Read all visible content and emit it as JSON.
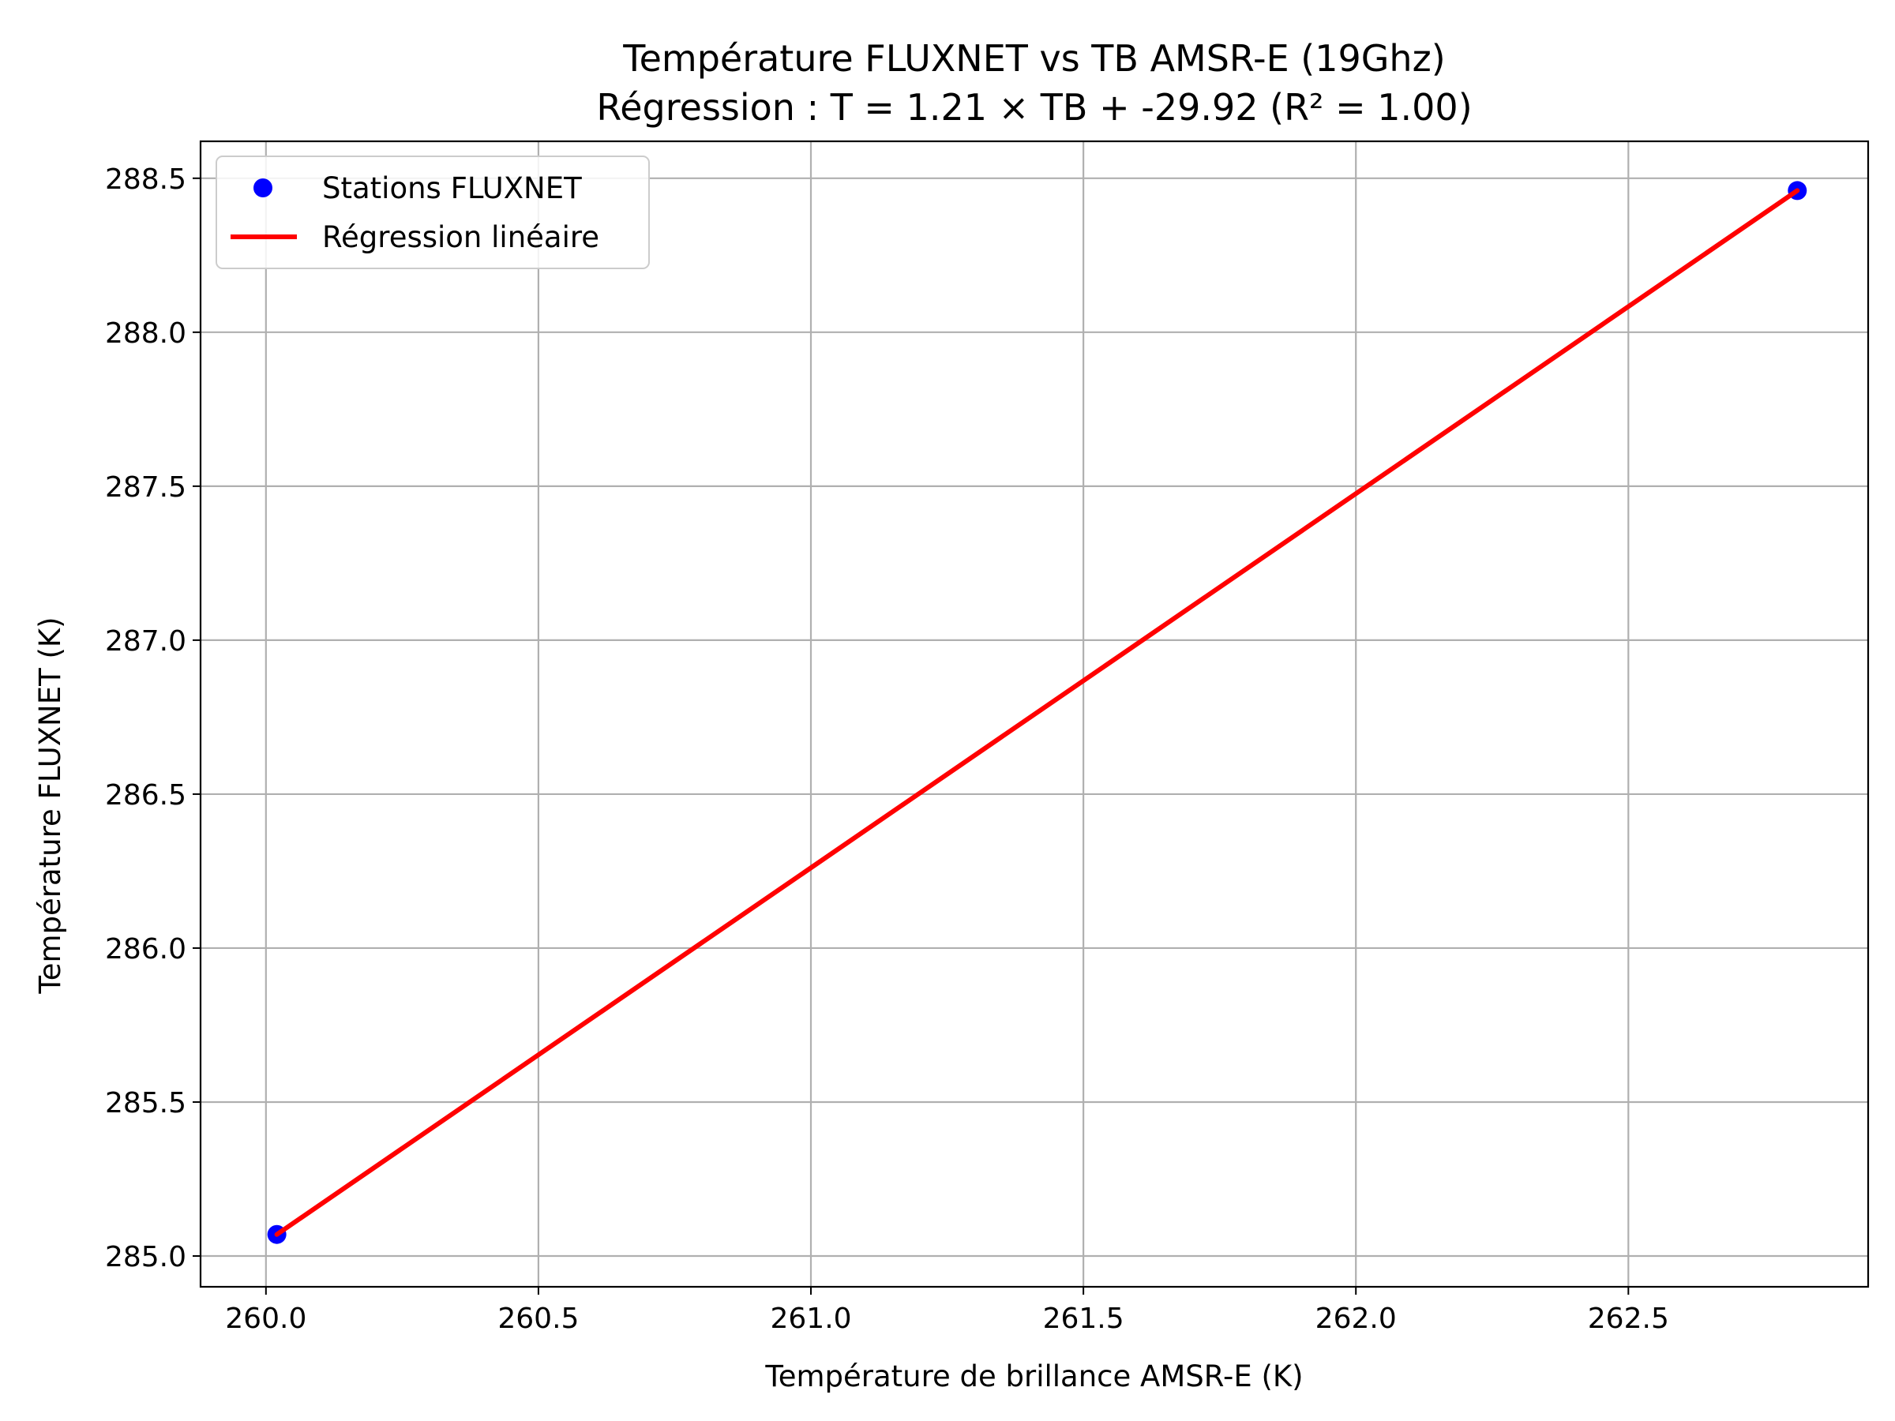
{
  "chart_data": {
    "type": "scatter",
    "title": "Température FLUXNET vs TB AMSR-E (19Ghz)",
    "subtitle": "Régression : T = 1.21 × TB + -29.92 (R² = 1.00)",
    "xlabel": "Température de brillance AMSR-E (K)",
    "ylabel": "Température FLUXNET (K)",
    "xlim": [
      259.88,
      262.94
    ],
    "ylim": [
      284.9,
      288.62
    ],
    "xticks": [
      260.0,
      260.5,
      261.0,
      261.5,
      262.0,
      262.5
    ],
    "xtick_labels": [
      "260.0",
      "260.5",
      "261.0",
      "261.5",
      "262.0",
      "262.5"
    ],
    "yticks": [
      285.0,
      285.5,
      286.0,
      286.5,
      287.0,
      287.5,
      288.0,
      288.5
    ],
    "ytick_labels": [
      "285.0",
      "285.5",
      "286.0",
      "286.5",
      "287.0",
      "287.5",
      "288.0",
      "288.5"
    ],
    "grid": true,
    "legend_position": "top-left",
    "series": [
      {
        "name": "Stations FLUXNET",
        "kind": "scatter",
        "color": "#0000ff",
        "x": [
          260.02,
          262.81
        ],
        "y": [
          285.07,
          288.46
        ]
      },
      {
        "name": "Régression linéaire",
        "kind": "line",
        "color": "#ff0000",
        "x": [
          260.02,
          262.81
        ],
        "y": [
          285.07,
          288.46
        ]
      }
    ]
  }
}
